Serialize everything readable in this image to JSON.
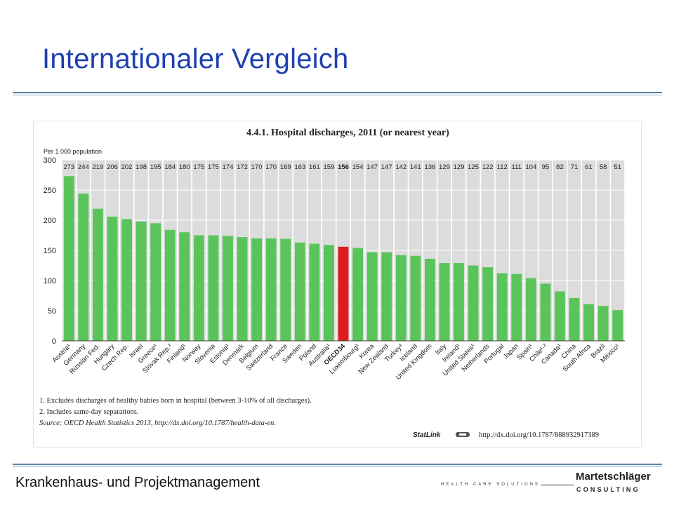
{
  "slide": {
    "title": "Internationaler Vergleich",
    "footer": "Krankenhaus- und Projektmanagement",
    "tagline": "HEALTH CARE SOLUTIONS",
    "logo_name": "Martetschläger",
    "logo_sub": "CONSULTING",
    "accent_color": "#1f3fb0"
  },
  "chart_data": {
    "type": "bar",
    "title": "4.4.1. Hospital discharges, 2011 (or nearest year)",
    "ylabel": "Per 1 000 population",
    "ylim": [
      0,
      300
    ],
    "yticks": [
      "0",
      "50",
      "100",
      "150",
      "200",
      "250",
      "300"
    ],
    "grid": true,
    "categories": [
      "Austria¹",
      "Germany",
      "Russian Fed.",
      "Hungary",
      "Czech Rep.",
      "Israel",
      "Greece¹",
      "Slovak Rep.²",
      "Finland¹",
      "Norway",
      "Slovenia",
      "Estonia¹",
      "Denmark",
      "Belgium",
      "Switzerland",
      "France",
      "Sweden",
      "Poland",
      "Australia¹",
      "OECD34",
      "Luxembourg¹",
      "Korea",
      "New Zealand",
      "Turkey²",
      "Iceland",
      "United Kingdom",
      "Italy",
      "Ireland¹",
      "United States¹",
      "Netherlands",
      "Portugal",
      "Japan",
      "Spain¹",
      "Chile¹·²",
      "Canada¹",
      "China",
      "South Africa",
      "Brazil",
      "Mexico¹"
    ],
    "values": [
      273,
      244,
      219,
      206,
      202,
      198,
      195,
      184,
      180,
      175,
      175,
      174,
      172,
      170,
      170,
      169,
      163,
      161,
      159,
      156,
      154,
      147,
      147,
      142,
      141,
      136,
      129,
      129,
      125,
      122,
      112,
      111,
      104,
      95,
      82,
      71,
      61,
      58,
      51
    ],
    "highlight": "OECD34",
    "colors": {
      "bar": "#5ac45a",
      "highlight": "#dd1c1c",
      "column_bg": "#dcdcdc"
    },
    "notes": [
      "1.  Excludes discharges of healthy babies born in hospital (between 3-10% of all discharges).",
      "2.  Includes same-day separations."
    ],
    "source": "Source:  OECD Health Statistics 2013, http://dx.doi.org/10.1787/health-data-en.",
    "statlink_label": "StatLink",
    "statlink_url": "http://dx.doi.org/10.1787/888932917389"
  }
}
